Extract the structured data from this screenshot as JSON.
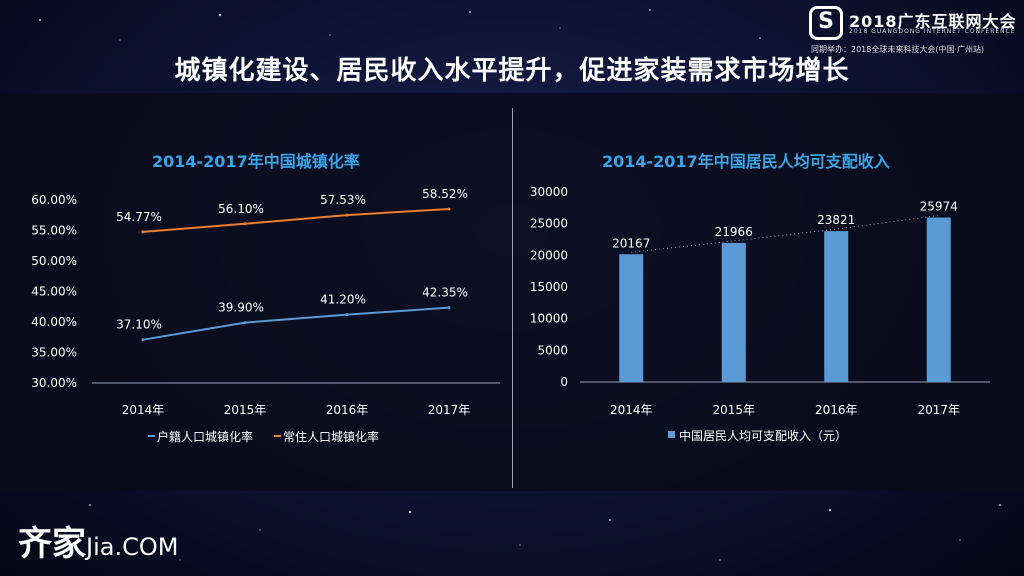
{
  "header": {
    "logo_mark": "S",
    "event_title": "2018广东互联网大会",
    "event_en": "2018 GUANGDONG INTERNET CONFERENCE",
    "event_sub": "同期举办：2018全球未来科技大会(中国·广州站)"
  },
  "slide_title": "城镇化建设、居民收入水平提升，促进家装需求市场增长",
  "brand": {
    "cn": "齐家",
    "en": "Jia.COM"
  },
  "colors": {
    "line_blue": "#5b9bd5",
    "line_orange": "#ed7d31",
    "bar": "#5b9bd5",
    "title": "#3aa4e6"
  },
  "chart_data": [
    {
      "type": "line",
      "title": "2014-2017年中国城镇化率",
      "categories": [
        "2014年",
        "2015年",
        "2016年",
        "2017年"
      ],
      "y_ticks": [
        "60.00%",
        "55.00%",
        "50.00%",
        "45.00%",
        "40.00%",
        "35.00%",
        "30.00%"
      ],
      "ylim": [
        30,
        60
      ],
      "series": [
        {
          "name": "户籍人口城镇化率",
          "values": [
            37.1,
            39.9,
            41.2,
            42.35
          ],
          "labels": [
            "37.10%",
            "39.90%",
            "41.20%",
            "42.35%"
          ]
        },
        {
          "name": "常住人口城镇化率",
          "values": [
            54.77,
            56.1,
            57.53,
            58.52
          ],
          "labels": [
            "54.77%",
            "56.10%",
            "57.53%",
            "58.52%"
          ]
        }
      ],
      "legend": "bottom"
    },
    {
      "type": "bar",
      "title": "2014-2017年中国居民人均可支配收入",
      "categories": [
        "2014年",
        "2015年",
        "2016年",
        "2017年"
      ],
      "y_ticks": [
        "30000",
        "25000",
        "20000",
        "15000",
        "10000",
        "5000",
        "0"
      ],
      "ylim": [
        0,
        30000
      ],
      "series": [
        {
          "name": "中国居民人均可支配收入（元）",
          "values": [
            20167,
            21966,
            23821,
            25974
          ],
          "labels": [
            "20167",
            "21966",
            "23821",
            "25974"
          ]
        }
      ],
      "trendline": "dotted",
      "legend": "bottom"
    }
  ]
}
